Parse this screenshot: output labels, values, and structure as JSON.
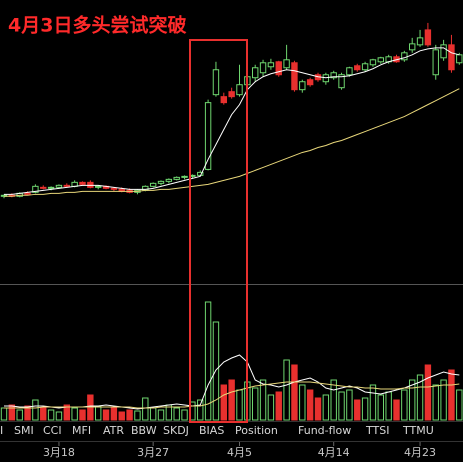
{
  "chart_data": {
    "type": "candlestick",
    "title": "4月3日多头尝试突破",
    "up_color": "#6fd66f",
    "down_color": "#e8302e",
    "ylim": [
      0,
      285
    ],
    "candles": {
      "open": [
        88,
        89,
        88,
        91,
        92,
        97,
        96,
        97,
        99,
        98,
        102,
        102,
        97,
        98,
        96,
        95,
        94,
        92,
        94,
        98,
        101,
        103,
        105,
        107,
        108,
        109,
        115,
        190,
        188,
        193,
        190,
        200,
        207,
        212,
        218,
        223,
        217,
        222,
        195,
        205,
        210,
        203,
        207,
        197,
        210,
        219,
        215,
        220,
        223,
        223,
        228,
        225,
        235,
        240,
        255,
        210,
        227,
        240,
        222
      ],
      "high": [
        90,
        91,
        92,
        93,
        100,
        99,
        98,
        100,
        101,
        104,
        103,
        104,
        99,
        99,
        97,
        97,
        96,
        95,
        99,
        102,
        104,
        106,
        108,
        109,
        110,
        114,
        185,
        223,
        192,
        197,
        220,
        215,
        220,
        225,
        226,
        224,
        240,
        224,
        205,
        207,
        212,
        212,
        214,
        212,
        218,
        221,
        223,
        226,
        228,
        230,
        230,
        234,
        247,
        255,
        262,
        240,
        245,
        250,
        232
      ],
      "low": [
        86,
        87,
        87,
        89,
        91,
        95,
        94,
        96,
        97,
        97,
        99,
        96,
        95,
        95,
        93,
        92,
        91,
        90,
        93,
        97,
        99,
        101,
        104,
        105,
        106,
        108,
        114,
        188,
        180,
        186,
        188,
        196,
        203,
        208,
        215,
        208,
        215,
        193,
        192,
        198,
        203,
        200,
        205,
        195,
        208,
        213,
        213,
        218,
        221,
        221,
        222,
        223,
        232,
        238,
        238,
        205,
        224,
        212,
        220
      ],
      "close": [
        89,
        88,
        91,
        90,
        98,
        96,
        97,
        99,
        98,
        102,
        100,
        97,
        98,
        96,
        95,
        93,
        92,
        94,
        98,
        101,
        103,
        105,
        107,
        108,
        109,
        112,
        182,
        215,
        182,
        188,
        200,
        208,
        217,
        222,
        222,
        210,
        225,
        195,
        203,
        200,
        205,
        210,
        212,
        210,
        217,
        215,
        221,
        225,
        227,
        228,
        223,
        232,
        241,
        247,
        240,
        235,
        240,
        215,
        230
      ]
    },
    "lines": [
      {
        "color": "#ffffff",
        "values": [
          90,
          90,
          91,
          92,
          93,
          94,
          95,
          96,
          97,
          98,
          99,
          99,
          99,
          98,
          97,
          96,
          95,
          95,
          95,
          96,
          98,
          100,
          102,
          104,
          106,
          108,
          125,
          140,
          155,
          170,
          180,
          195,
          203,
          208,
          211,
          213,
          215,
          214,
          212,
          210,
          208,
          207,
          208,
          208,
          209,
          211,
          213,
          216,
          220,
          223,
          225,
          227,
          230,
          234,
          236,
          237,
          237,
          232,
          230
        ]
      },
      {
        "color": "#e8d77a",
        "values": [
          88,
          88,
          89,
          89,
          90,
          90,
          91,
          91,
          92,
          92,
          93,
          93,
          93,
          93,
          93,
          93,
          93,
          93,
          94,
          94,
          95,
          95,
          96,
          97,
          98,
          99,
          100,
          102,
          104,
          106,
          108,
          111,
          114,
          117,
          120,
          123,
          126,
          129,
          132,
          134,
          137,
          139,
          142,
          144,
          147,
          150,
          153,
          156,
          159,
          162,
          165,
          168,
          172,
          176,
          180,
          184,
          188,
          192,
          196
        ]
      }
    ],
    "volume": {
      "ylim": [
        0,
        135
      ],
      "values": [
        12,
        15,
        10,
        14,
        20,
        12,
        10,
        8,
        15,
        12,
        10,
        25,
        14,
        10,
        12,
        8,
        10,
        9,
        22,
        12,
        10,
        15,
        12,
        10,
        18,
        20,
        118,
        98,
        35,
        40,
        30,
        38,
        32,
        40,
        25,
        28,
        60,
        55,
        35,
        30,
        22,
        25,
        40,
        28,
        30,
        20,
        22,
        35,
        25,
        28,
        20,
        30,
        40,
        45,
        55,
        35,
        40,
        50,
        30
      ],
      "lines": [
        {
          "color": "#ffffff",
          "values": [
            14,
            14,
            13,
            13,
            14,
            14,
            13,
            12,
            13,
            13,
            13,
            14,
            14,
            15,
            14,
            13,
            12,
            11,
            12,
            13,
            14,
            15,
            16,
            15,
            14,
            15,
            35,
            50,
            58,
            62,
            65,
            58,
            40,
            36,
            35,
            33,
            35,
            38,
            40,
            42,
            38,
            32,
            30,
            32,
            34,
            32,
            28,
            27,
            26,
            28,
            30,
            32,
            35,
            38,
            42,
            45,
            48,
            46,
            45
          ]
        },
        {
          "color": "#e8d77a",
          "values": [
            12,
            12,
            12,
            12,
            12,
            13,
            13,
            13,
            13,
            13,
            13,
            13,
            13,
            13,
            13,
            13,
            13,
            12,
            12,
            12,
            13,
            13,
            13,
            13,
            14,
            14,
            16,
            20,
            25,
            28,
            30,
            32,
            34,
            35,
            36,
            37,
            38,
            38,
            38,
            38,
            37,
            36,
            35,
            34,
            33,
            33,
            32,
            32,
            31,
            31,
            31,
            32,
            32,
            33,
            33,
            34,
            35,
            35,
            36
          ]
        }
      ]
    },
    "tabs": [
      "I",
      "SMI",
      "CCI",
      "MFI",
      "ATR",
      "BBW",
      "SKDJ",
      "BIAS",
      "Position",
      "Fund-flow",
      "TTSI",
      "TTMU"
    ],
    "xticks": [
      {
        "value": 7,
        "label": "3月18"
      },
      {
        "value": 19,
        "label": "3月27"
      },
      {
        "value": 30,
        "label": "4月5"
      },
      {
        "value": 42,
        "label": "4月14"
      },
      {
        "value": 53,
        "label": "4月23"
      }
    ]
  }
}
